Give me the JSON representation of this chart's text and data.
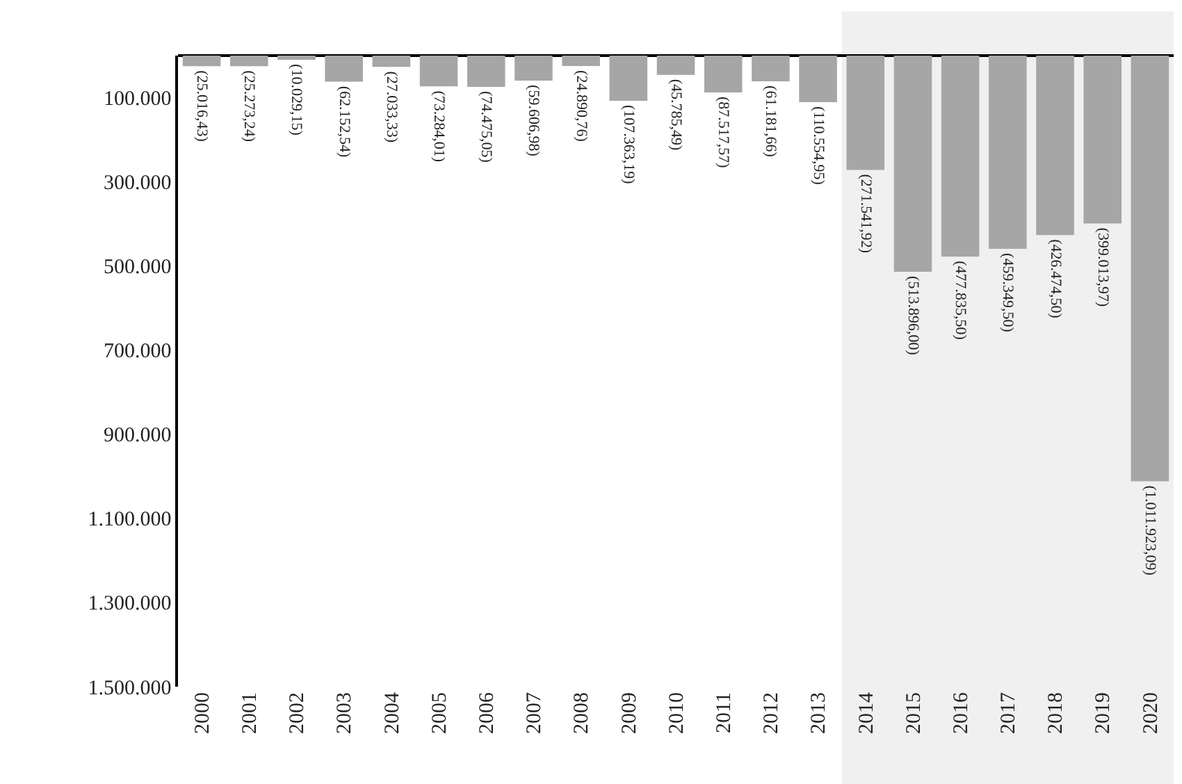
{
  "chart_data": {
    "type": "bar",
    "categories": [
      "2000",
      "2001",
      "2002",
      "2003",
      "2004",
      "2005",
      "2006",
      "2007",
      "2008",
      "2009",
      "2010",
      "2011",
      "2012",
      "2013",
      "2014",
      "2015",
      "2016",
      "2017",
      "2018",
      "2019",
      "2020"
    ],
    "values": [
      25016.43,
      25273.24,
      10029.15,
      62152.54,
      27033.33,
      73284.01,
      74475.05,
      59606.98,
      24890.76,
      107363.19,
      45785.49,
      87517.57,
      61181.66,
      110554.95,
      271541.92,
      513896.0,
      477835.5,
      459349.5,
      426474.5,
      399013.97,
      1011923.09
    ],
    "value_labels": [
      "(25.016,43)",
      "(25.273,24)",
      "(10.029,15)",
      "(62.152,54)",
      "(27.033,33)",
      "(73.284,01)",
      "(74.475,05)",
      "(59.606,98)",
      "(24.890,76)",
      "(107.363,19)",
      "(45.785,49)",
      "(87.517,57)",
      "(61.181,66)",
      "(110.554,95)",
      "(271.541,92)",
      "(513.896,00)",
      "(477.835,50)",
      "(459.349,50)",
      "(426.474,50)",
      "(399.013,97)",
      "(1.011.923,09)"
    ],
    "color": "#a6a6a6",
    "ylim": [
      1500000,
      0
    ],
    "yticks": [
      {
        "value": 100000,
        "label": "100.000"
      },
      {
        "value": 300000,
        "label": "300.000"
      },
      {
        "value": 500000,
        "label": "500.000"
      },
      {
        "value": 700000,
        "label": "700.000"
      },
      {
        "value": 900000,
        "label": "900.000"
      },
      {
        "value": 1100000,
        "label": "1.100.000"
      },
      {
        "value": 1300000,
        "label": "1.300.000"
      },
      {
        "value": 1500000,
        "label": "1.500.000"
      }
    ],
    "bands": [
      {
        "axis": "x",
        "from": "2014",
        "to": "2020",
        "color": "#f0f0f0"
      }
    ],
    "grid": false,
    "legend": false
  }
}
